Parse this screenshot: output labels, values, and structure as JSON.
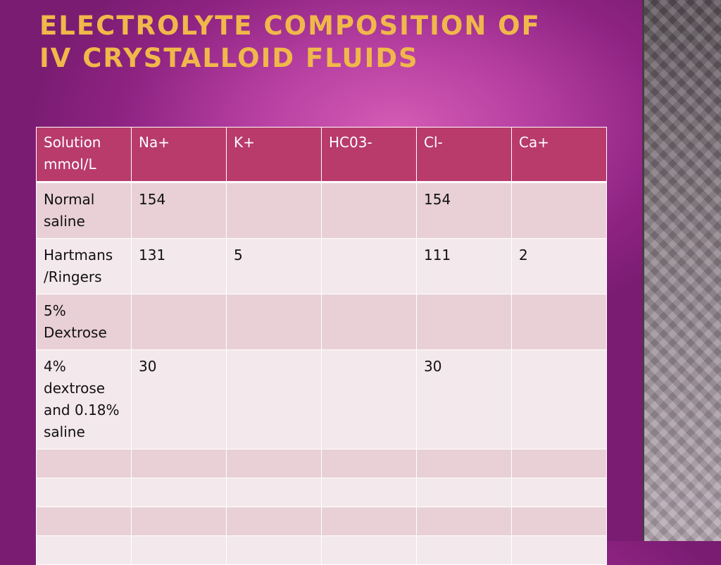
{
  "slide": {
    "title_line1": "ELECTROLYTE COMPOSITION OF",
    "title_line2": "IV CRYSTALLOID FLUIDS"
  },
  "table": {
    "headers": [
      "Solution mmol/L",
      "Na+",
      "K+",
      "HC03-",
      "Cl-",
      "Ca+"
    ],
    "rows": [
      [
        "Normal saline",
        "154",
        "",
        "",
        "154",
        ""
      ],
      [
        "Hartmans /Ringers",
        "131",
        "5",
        "",
        "111",
        "2"
      ],
      [
        "5% Dextrose",
        "",
        "",
        "",
        "",
        ""
      ],
      [
        "4% dextrose and 0.18% saline",
        "30",
        "",
        "",
        "30",
        ""
      ],
      [
        "",
        "",
        "",
        "",
        "",
        ""
      ],
      [
        "",
        "",
        "",
        "",
        "",
        ""
      ],
      [
        "",
        "",
        "",
        "",
        "",
        ""
      ],
      [
        "",
        "",
        "",
        "",
        "",
        ""
      ]
    ]
  },
  "colors": {
    "background": "#b43ea0",
    "title": "#f0b84a",
    "header_row": "#b83b6c",
    "row_odd": "#e8d0d6",
    "row_even": "#f3e8ec"
  }
}
